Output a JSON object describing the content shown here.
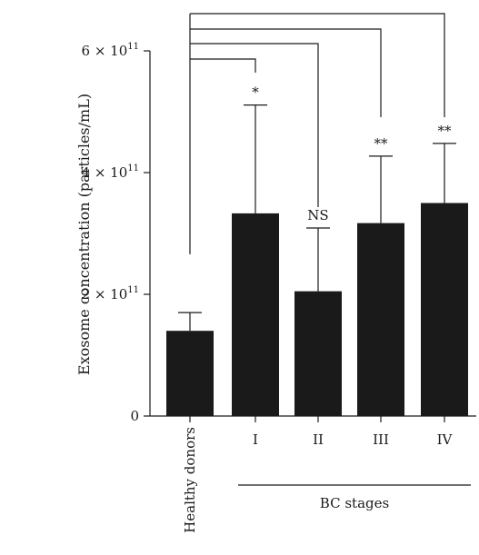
{
  "chart_data": {
    "type": "bar",
    "ylabel": "Exosome concentration (particles/mL)",
    "y_scale_label": "× 10",
    "y_exponent": "11",
    "ylim": [
      0,
      6.0
    ],
    "yticks": [
      {
        "value": 0,
        "mantissa": "0",
        "exp": ""
      },
      {
        "value": 2,
        "mantissa": "2 × 10",
        "exp": "11"
      },
      {
        "value": 4,
        "mantissa": "4 × 10",
        "exp": "11"
      },
      {
        "value": 6,
        "mantissa": "6 × 10",
        "exp": "11"
      }
    ],
    "categories": [
      "Healthy donors",
      "I",
      "II",
      "III",
      "IV"
    ],
    "values": [
      1.4,
      3.33,
      2.05,
      3.17,
      3.5
    ],
    "errors": [
      0.3,
      1.78,
      1.04,
      1.1,
      0.98
    ],
    "significance": [
      "",
      "*",
      "NS",
      "**",
      "**"
    ],
    "group_label": "BC stages",
    "bar_color": "#1a1a1a"
  }
}
